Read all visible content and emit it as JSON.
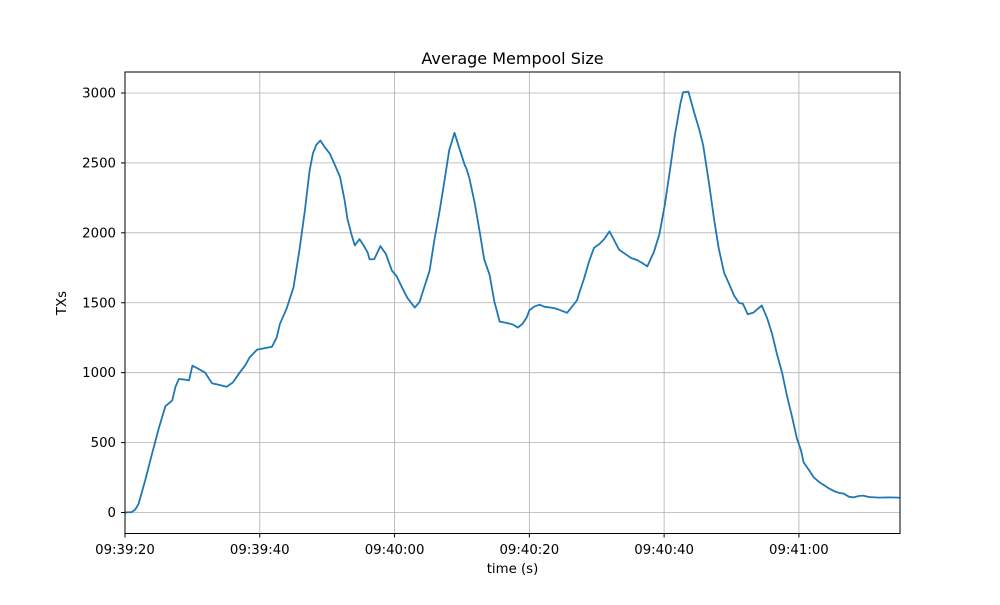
{
  "figure": {
    "background_color": "#ffffff"
  },
  "chart_data": {
    "type": "line",
    "title": "Average Mempool Size",
    "xlabel": "time (s)",
    "ylabel": "TXs",
    "line_color": "#1f77b4",
    "line_width": 1.8,
    "grid": true,
    "grid_color": "#b0b0b0",
    "axes_edge_color": "#000000",
    "legend_position": "none",
    "xlim": [
      0,
      115
    ],
    "ylim": [
      -150,
      3150
    ],
    "x_unit_note": "x values are seconds after 09:39:20",
    "x_ticks": [
      {
        "t": 0,
        "label": "09:39:20"
      },
      {
        "t": 20,
        "label": "09:39:40"
      },
      {
        "t": 40,
        "label": "09:40:00"
      },
      {
        "t": 60,
        "label": "09:40:20"
      },
      {
        "t": 80,
        "label": "09:40:40"
      },
      {
        "t": 100,
        "label": "09:41:00"
      }
    ],
    "y_ticks": [
      0,
      500,
      1000,
      1500,
      2000,
      2500,
      3000
    ],
    "points": [
      [
        0,
        0
      ],
      [
        1,
        3
      ],
      [
        1.5,
        20
      ],
      [
        2,
        60
      ],
      [
        3,
        230
      ],
      [
        4,
        420
      ],
      [
        5,
        600
      ],
      [
        6,
        760
      ],
      [
        7,
        800
      ],
      [
        7.5,
        900
      ],
      [
        8,
        955
      ],
      [
        9,
        950
      ],
      [
        9.5,
        945
      ],
      [
        10,
        1050
      ],
      [
        10.8,
        1030
      ],
      [
        11.9,
        1000
      ],
      [
        12.9,
        925
      ],
      [
        13.8,
        915
      ],
      [
        15.1,
        900
      ],
      [
        16,
        930
      ],
      [
        17,
        1000
      ],
      [
        17.8,
        1050
      ],
      [
        18.5,
        1110
      ],
      [
        19.6,
        1165
      ],
      [
        20.7,
        1175
      ],
      [
        21.8,
        1185
      ],
      [
        22.5,
        1250
      ],
      [
        23,
        1350
      ],
      [
        24,
        1460
      ],
      [
        25,
        1610
      ],
      [
        25.9,
        1880
      ],
      [
        26.7,
        2160
      ],
      [
        27.4,
        2450
      ],
      [
        27.9,
        2570
      ],
      [
        28.4,
        2630
      ],
      [
        29,
        2660
      ],
      [
        29.6,
        2615
      ],
      [
        30.4,
        2565
      ],
      [
        31.1,
        2490
      ],
      [
        31.9,
        2400
      ],
      [
        32.6,
        2230
      ],
      [
        33,
        2100
      ],
      [
        33.6,
        1990
      ],
      [
        34.1,
        1910
      ],
      [
        34.8,
        1955
      ],
      [
        35.4,
        1910
      ],
      [
        36,
        1860
      ],
      [
        36.3,
        1810
      ],
      [
        37,
        1812
      ],
      [
        37.9,
        1905
      ],
      [
        38.7,
        1850
      ],
      [
        39.6,
        1730
      ],
      [
        40.3,
        1690
      ],
      [
        41.2,
        1600
      ],
      [
        41.9,
        1535
      ],
      [
        43,
        1465
      ],
      [
        43.7,
        1505
      ],
      [
        44.4,
        1610
      ],
      [
        45.2,
        1730
      ],
      [
        45.9,
        1945
      ],
      [
        46.7,
        2160
      ],
      [
        47.4,
        2370
      ],
      [
        48.1,
        2590
      ],
      [
        48.9,
        2715
      ],
      [
        49.6,
        2605
      ],
      [
        50.4,
        2485
      ],
      [
        50.7,
        2455
      ],
      [
        51.1,
        2390
      ],
      [
        51.9,
        2210
      ],
      [
        52.6,
        2015
      ],
      [
        53.3,
        1810
      ],
      [
        54.1,
        1700
      ],
      [
        54.8,
        1510
      ],
      [
        55.6,
        1365
      ],
      [
        56.5,
        1357
      ],
      [
        57.5,
        1345
      ],
      [
        58.3,
        1322
      ],
      [
        59,
        1350
      ],
      [
        59.6,
        1395
      ],
      [
        60,
        1445
      ],
      [
        60.7,
        1472
      ],
      [
        61.5,
        1486
      ],
      [
        62.2,
        1472
      ],
      [
        63.7,
        1462
      ],
      [
        64.4,
        1450
      ],
      [
        65.6,
        1428
      ],
      [
        66.2,
        1464
      ],
      [
        67.1,
        1520
      ],
      [
        67.4,
        1570
      ],
      [
        68.1,
        1670
      ],
      [
        68.9,
        1800
      ],
      [
        69.6,
        1893
      ],
      [
        70.4,
        1920
      ],
      [
        71.1,
        1955
      ],
      [
        71.9,
        2010
      ],
      [
        72.6,
        1945
      ],
      [
        73.3,
        1880
      ],
      [
        74.2,
        1850
      ],
      [
        75.1,
        1820
      ],
      [
        76,
        1805
      ],
      [
        76.9,
        1780
      ],
      [
        77.5,
        1760
      ],
      [
        78.5,
        1865
      ],
      [
        79.3,
        1990
      ],
      [
        80.1,
        2200
      ],
      [
        80.9,
        2460
      ],
      [
        81.6,
        2700
      ],
      [
        82.4,
        2920
      ],
      [
        82.8,
        3005
      ],
      [
        83.6,
        3010
      ],
      [
        84.4,
        2870
      ],
      [
        85.2,
        2740
      ],
      [
        85.8,
        2625
      ],
      [
        86.7,
        2340
      ],
      [
        87.4,
        2100
      ],
      [
        88.1,
        1890
      ],
      [
        88.9,
        1715
      ],
      [
        89.6,
        1640
      ],
      [
        90.4,
        1550
      ],
      [
        91.1,
        1500
      ],
      [
        91.7,
        1492
      ],
      [
        92.4,
        1418
      ],
      [
        93.2,
        1428
      ],
      [
        94.5,
        1480
      ],
      [
        95.3,
        1388
      ],
      [
        96,
        1280
      ],
      [
        96.7,
        1140
      ],
      [
        97.5,
        1000
      ],
      [
        98.2,
        840
      ],
      [
        99,
        680
      ],
      [
        99.7,
        530
      ],
      [
        100.3,
        447
      ],
      [
        100.7,
        360
      ],
      [
        101.5,
        303
      ],
      [
        102.2,
        252
      ],
      [
        103,
        218
      ],
      [
        103.7,
        197
      ],
      [
        104.4,
        174
      ],
      [
        105.2,
        153
      ],
      [
        105.9,
        141
      ],
      [
        106.7,
        134
      ],
      [
        107.4,
        113
      ],
      [
        108.1,
        108
      ],
      [
        108.9,
        118
      ],
      [
        109.5,
        121
      ],
      [
        110.4,
        111
      ],
      [
        111.9,
        107
      ],
      [
        113.3,
        108
      ],
      [
        114.8,
        107
      ]
    ]
  }
}
